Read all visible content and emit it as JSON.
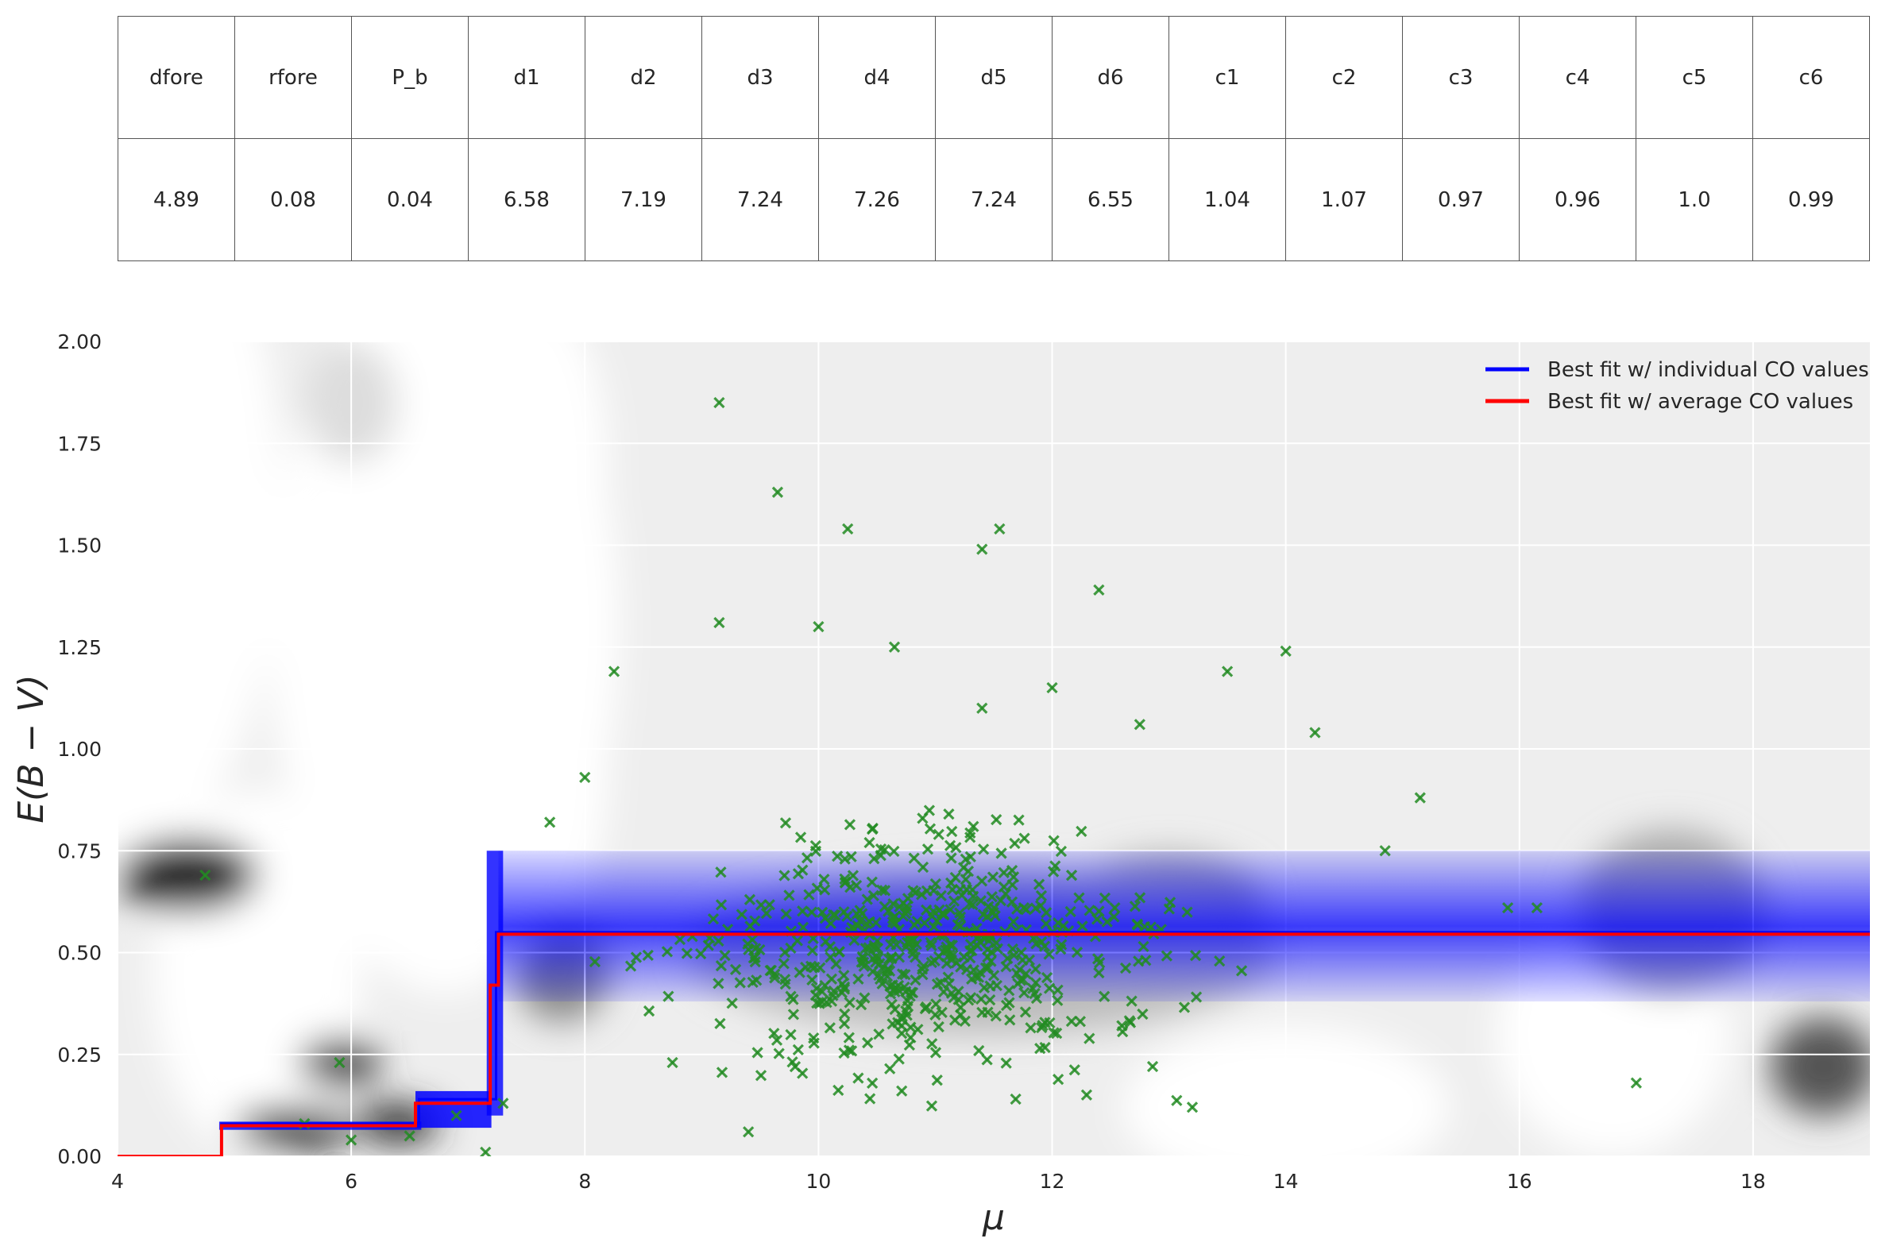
{
  "table": {
    "headers": [
      "dfore",
      "rfore",
      "P_b",
      "d1",
      "d2",
      "d3",
      "d4",
      "d5",
      "d6",
      "c1",
      "c2",
      "c3",
      "c4",
      "c5",
      "c6"
    ],
    "values": [
      "4.89",
      "0.08",
      "0.04",
      "6.58",
      "7.19",
      "7.24",
      "7.26",
      "7.24",
      "6.55",
      "1.04",
      "1.07",
      "0.97",
      "0.96",
      "1.0",
      "0.99"
    ]
  },
  "chart_data": {
    "type": "line",
    "xlabel": "μ",
    "ylabel": "E(B − V)",
    "xlim": [
      4,
      19
    ],
    "ylim": [
      0,
      2
    ],
    "xticks": [
      "4",
      "6",
      "8",
      "10",
      "12",
      "14",
      "16",
      "18"
    ],
    "yticks": [
      "0.00",
      "0.25",
      "0.50",
      "0.75",
      "1.00",
      "1.25",
      "1.50",
      "1.75",
      "2.00"
    ],
    "grid": true,
    "legend_position": "top-right",
    "background": "grayscale probability density",
    "series": [
      {
        "name": "Best fit w/ individual CO values",
        "color": "#0000ff",
        "x": [
          4,
          4.89,
          4.89,
          6.55,
          6.58,
          6.58,
          7.19,
          7.24,
          7.24,
          19
        ],
        "y": [
          0,
          0,
          0.08,
          0.08,
          0.08,
          0.14,
          0.14,
          0.14,
          0.55,
          0.55
        ]
      },
      {
        "name": "Best fit w/ average CO values",
        "color": "#ff0000",
        "x": [
          4,
          4.89,
          4.89,
          6.55,
          6.55,
          7.19,
          7.19,
          7.26,
          7.26,
          19
        ],
        "y": [
          0,
          0,
          0.075,
          0.075,
          0.13,
          0.13,
          0.42,
          0.42,
          0.545,
          0.545
        ]
      }
    ],
    "stars": {
      "color": "#228b22",
      "marker": "x",
      "highlights": [
        [
          4.75,
          0.69
        ],
        [
          5.9,
          0.23
        ],
        [
          5.6,
          0.08
        ],
        [
          6.0,
          0.04
        ],
        [
          6.5,
          0.05
        ],
        [
          6.9,
          0.1
        ],
        [
          7.15,
          0.01
        ],
        [
          7.3,
          0.13
        ],
        [
          9.15,
          1.85
        ],
        [
          9.65,
          1.63
        ],
        [
          10.25,
          1.54
        ],
        [
          11.4,
          1.49
        ],
        [
          11.55,
          1.54
        ],
        [
          12.4,
          1.39
        ],
        [
          9.15,
          1.31
        ],
        [
          10.0,
          1.3
        ],
        [
          10.65,
          1.25
        ],
        [
          8.25,
          1.19
        ],
        [
          12.0,
          1.15
        ],
        [
          13.5,
          1.19
        ],
        [
          14.0,
          1.24
        ],
        [
          14.25,
          1.04
        ],
        [
          12.75,
          1.06
        ],
        [
          8.0,
          0.93
        ],
        [
          9.4,
          0.06
        ],
        [
          11.4,
          1.1
        ],
        [
          15.15,
          0.88
        ],
        [
          14.85,
          0.75
        ],
        [
          17.0,
          0.18
        ],
        [
          15.9,
          0.61
        ],
        [
          16.15,
          0.61
        ],
        [
          7.7,
          0.82
        ],
        [
          8.75,
          0.23
        ],
        [
          9.8,
          0.22
        ]
      ]
    }
  },
  "colors": {
    "grid": "#ffffff",
    "blue_band": "#0000ff",
    "red_line": "#ff0000",
    "stars": "#228b22"
  }
}
